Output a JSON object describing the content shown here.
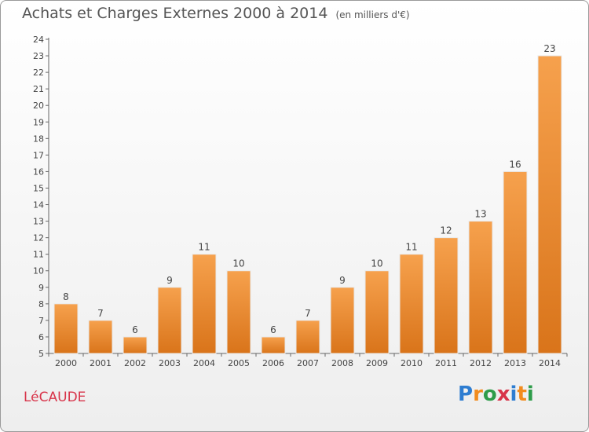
{
  "title": "Achats et Charges Externes 2000 à 2014",
  "subtitle": "(en milliers d'€)",
  "commune": "LéCAUDE",
  "logo": {
    "letters": [
      "P",
      "r",
      "o",
      "x",
      "i",
      "t",
      "i"
    ],
    "colors": [
      "#2e7dd1",
      "#f28c1e",
      "#2e9c4a",
      "#d8344a",
      "#2e7dd1",
      "#f28c1e",
      "#2e9c4a"
    ]
  },
  "chart_data": {
    "type": "bar",
    "categories": [
      "2000",
      "2001",
      "2002",
      "2003",
      "2004",
      "2005",
      "2006",
      "2007",
      "2008",
      "2009",
      "2010",
      "2011",
      "2012",
      "2013",
      "2014"
    ],
    "values": [
      8,
      7,
      6,
      9,
      11,
      10,
      6,
      7,
      9,
      10,
      11,
      12,
      13,
      16,
      23
    ],
    "ylim": [
      5,
      24
    ],
    "yticks": [
      5,
      6,
      7,
      8,
      9,
      10,
      11,
      12,
      13,
      14,
      15,
      16,
      17,
      18,
      19,
      20,
      21,
      22,
      23,
      24
    ],
    "bar_color_top": "#f6a14d",
    "bar_color_bottom": "#d9741a",
    "grid": false,
    "legend": "none"
  }
}
